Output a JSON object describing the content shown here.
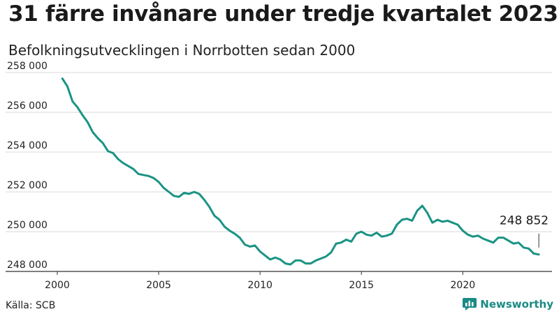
{
  "title": "31 färre invånare under tredje kvartalet 2023",
  "subtitle": "Befolkningsutvecklingen i Norrbotten sedan 2000",
  "source": "Källa: SCB",
  "brand": "Newsworthy",
  "colors": {
    "line": "#1a9384",
    "grid": "#d9d9d9",
    "text": "#1a1a1a",
    "brand": "#1a8a84"
  },
  "chart_data": {
    "type": "line",
    "title": "31 färre invånare under tredje kvartalet 2023",
    "subtitle": "Befolkningsutvecklingen i Norrbotten sedan 2000",
    "xlabel": "",
    "ylabel": "",
    "xlim": [
      2000,
      2024.4
    ],
    "ylim": [
      248000,
      258000
    ],
    "grid": true,
    "x_ticks": [
      2000,
      2005,
      2010,
      2015,
      2020
    ],
    "x_tick_labels": [
      "2000",
      "2005",
      "2010",
      "2015",
      "2020"
    ],
    "y_ticks": [
      248000,
      250000,
      252000,
      254000,
      256000,
      258000
    ],
    "y_tick_labels": [
      "248 000",
      "250 000",
      "252 000",
      "254 000",
      "256 000",
      "258 000"
    ],
    "annotation": {
      "text": "248 852",
      "x": 2023.75,
      "y": 248852
    },
    "series": [
      {
        "x": [
          2000.25,
          2000.5,
          2000.75,
          2001.0,
          2001.25,
          2001.5,
          2001.75,
          2002.0,
          2002.25,
          2002.5,
          2002.75,
          2003.0,
          2003.25,
          2003.5,
          2003.75,
          2004.0,
          2004.25,
          2004.5,
          2004.75,
          2005.0,
          2005.25,
          2005.5,
          2005.75,
          2006.0,
          2006.25,
          2006.5,
          2006.75,
          2007.0,
          2007.25,
          2007.5,
          2007.75,
          2008.0,
          2008.25,
          2008.5,
          2008.75,
          2009.0,
          2009.25,
          2009.5,
          2009.75,
          2010.0,
          2010.25,
          2010.5,
          2010.75,
          2011.0,
          2011.25,
          2011.5,
          2011.75,
          2012.0,
          2012.25,
          2012.5,
          2012.75,
          2013.0,
          2013.25,
          2013.5,
          2013.75,
          2014.0,
          2014.25,
          2014.5,
          2014.75,
          2015.0,
          2015.25,
          2015.5,
          2015.75,
          2016.0,
          2016.25,
          2016.5,
          2016.75,
          2017.0,
          2017.25,
          2017.5,
          2017.75,
          2018.0,
          2018.25,
          2018.5,
          2018.75,
          2019.0,
          2019.25,
          2019.5,
          2019.75,
          2020.0,
          2020.25,
          2020.5,
          2020.75,
          2021.0,
          2021.25,
          2021.5,
          2021.75,
          2022.0,
          2022.25,
          2022.5,
          2022.75,
          2023.0,
          2023.25,
          2023.5,
          2023.75
        ],
        "values": [
          257700,
          257300,
          256550,
          256250,
          255850,
          255500,
          255000,
          254700,
          254450,
          254050,
          253950,
          253650,
          253450,
          253300,
          253150,
          252900,
          252850,
          252800,
          252700,
          252500,
          252200,
          252000,
          251800,
          251750,
          251950,
          251900,
          252000,
          251900,
          251600,
          251250,
          250800,
          250600,
          250250,
          250050,
          249900,
          249700,
          249350,
          249250,
          249300,
          249000,
          248800,
          248600,
          248700,
          248600,
          248400,
          248350,
          248550,
          248550,
          248400,
          248400,
          248550,
          248650,
          248750,
          248950,
          249400,
          249450,
          249600,
          249500,
          249900,
          250000,
          249850,
          249800,
          249950,
          249750,
          249800,
          249900,
          250350,
          250600,
          250650,
          250550,
          251050,
          251300,
          250950,
          250450,
          250600,
          250500,
          250550,
          250450,
          250350,
          250050,
          249850,
          249750,
          249800,
          249650,
          249550,
          249450,
          249700,
          249700,
          249550,
          249400,
          249450,
          249200,
          249150,
          248900,
          248852
        ]
      }
    ]
  }
}
